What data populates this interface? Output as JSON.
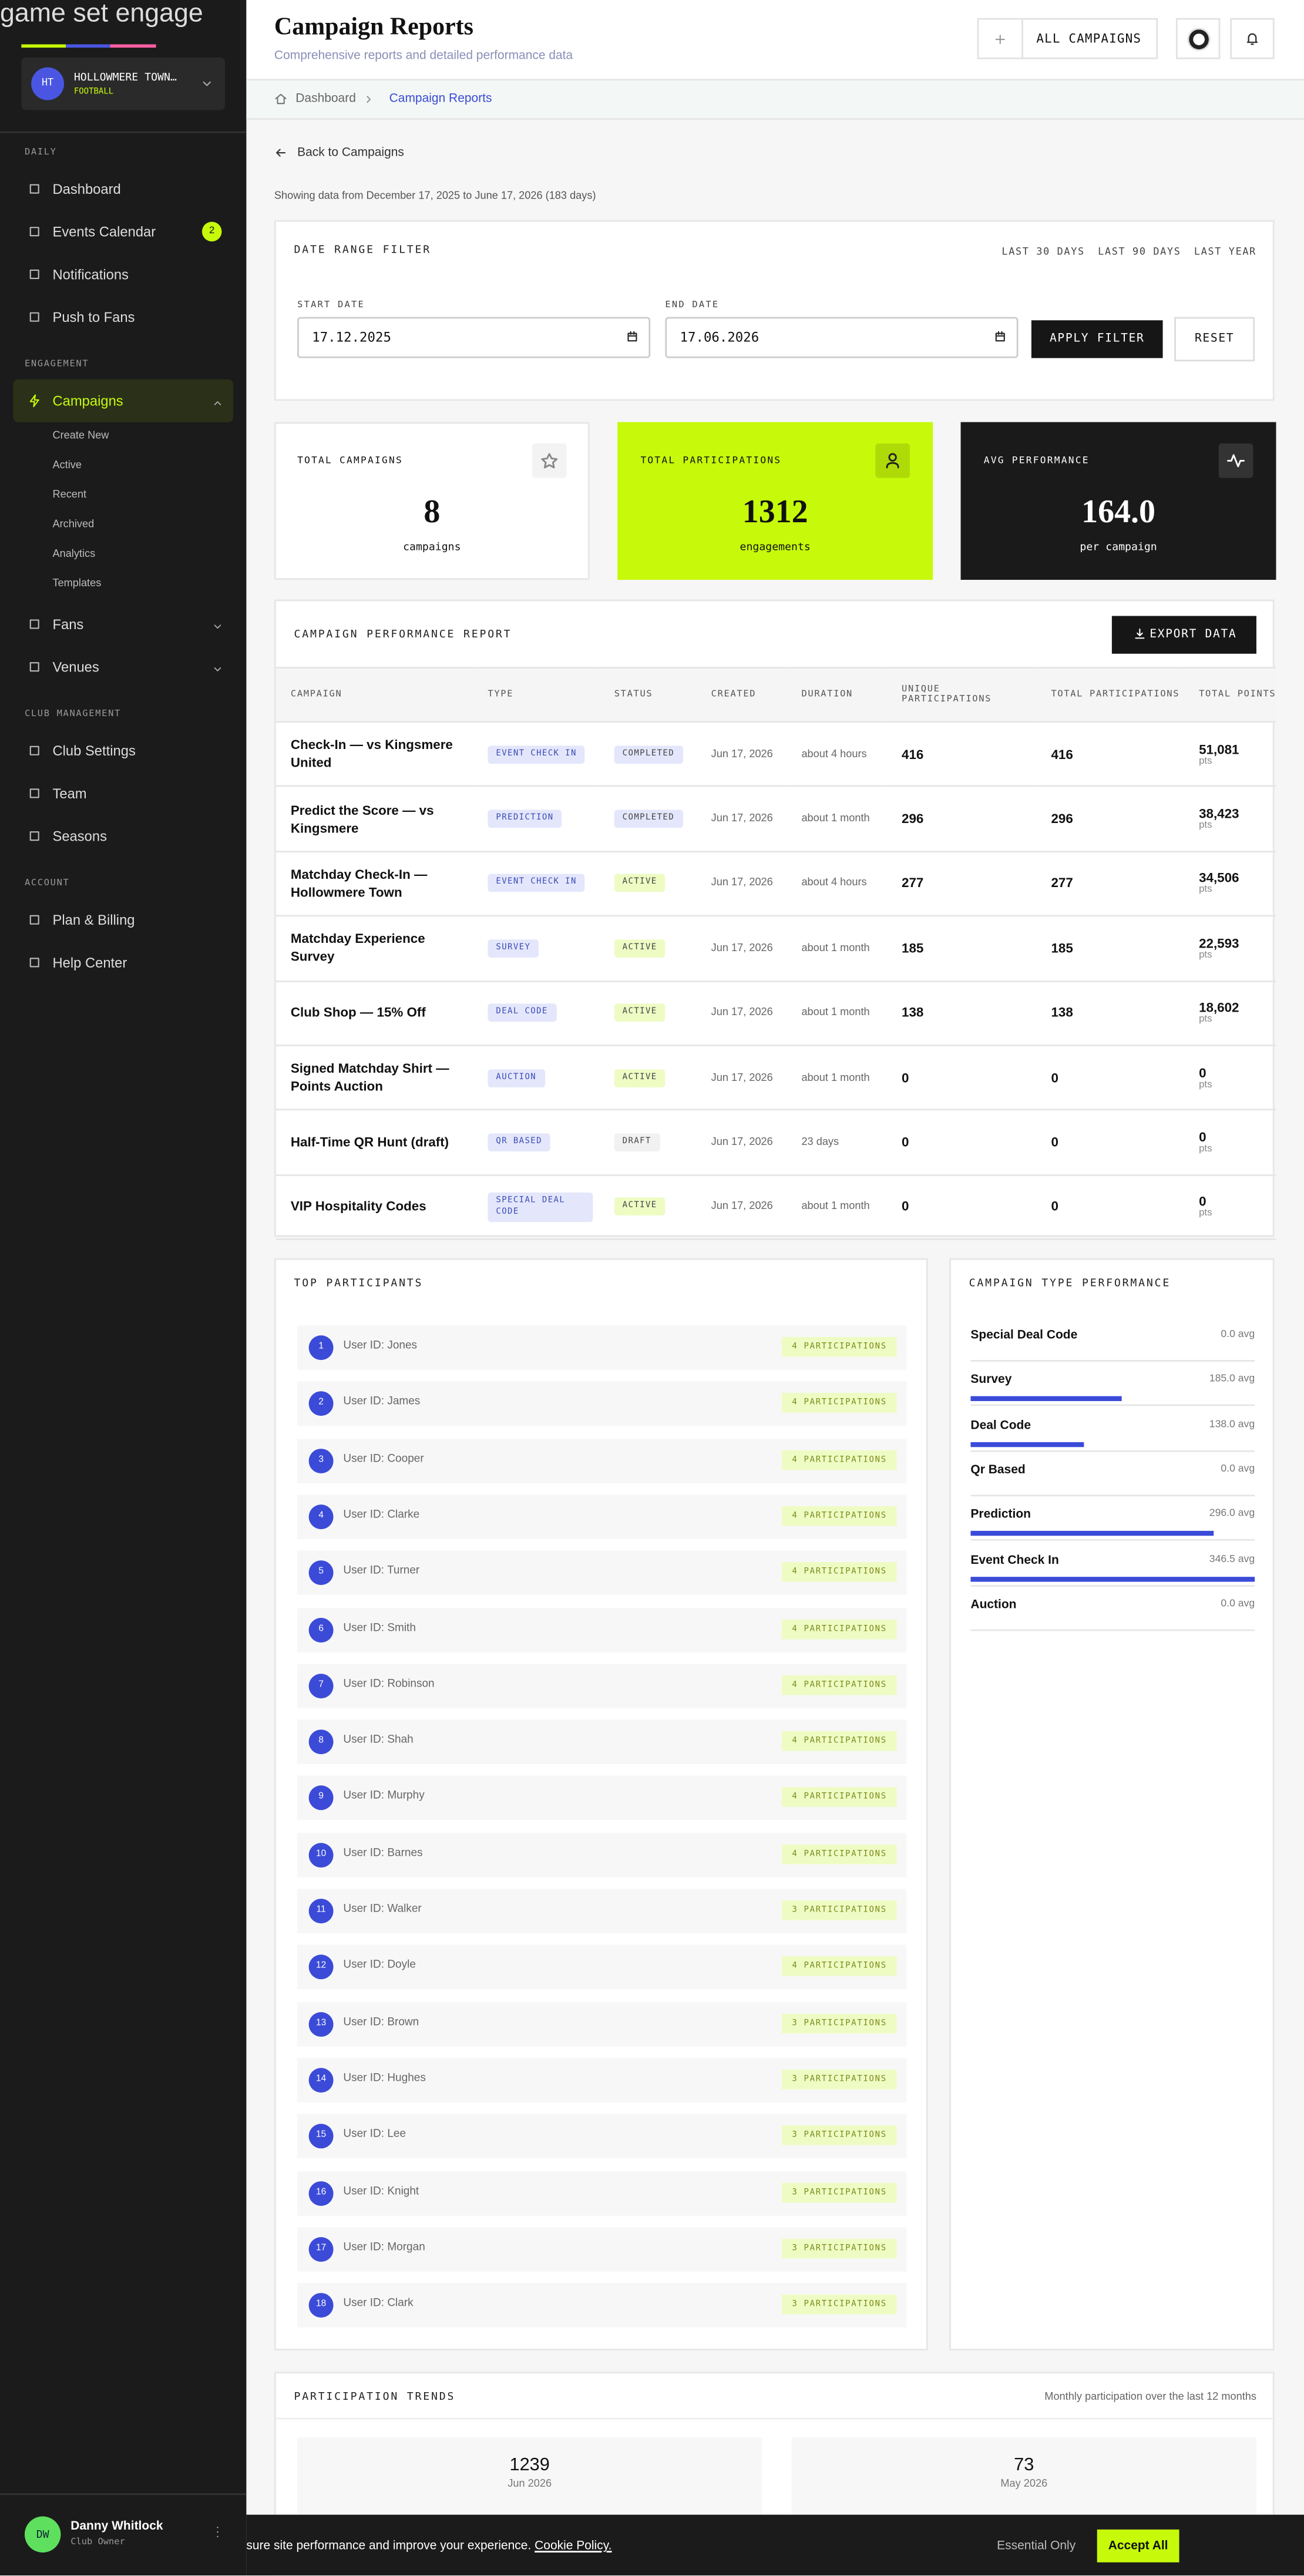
{
  "sidebar": {
    "logo": "game set engage",
    "club": {
      "initials": "HT",
      "name": "HOLLOWMERE TOWN…",
      "sport": "FOOTBALL"
    },
    "sections": [
      {
        "title": "DAILY",
        "items": [
          {
            "label": "Dashboard"
          },
          {
            "label": "Events Calendar",
            "badge": "2"
          },
          {
            "label": "Notifications"
          },
          {
            "label": "Push to Fans"
          }
        ]
      },
      {
        "title": "ENGAGEMENT",
        "items": [
          {
            "label": "Campaigns",
            "active": true,
            "expandable": true,
            "children": [
              "Create New",
              "Active",
              "Recent",
              "Archived",
              "Analytics",
              "Templates"
            ]
          },
          {
            "label": "Fans",
            "expandable": true
          },
          {
            "label": "Venues",
            "expandable": true
          }
        ]
      },
      {
        "title": "CLUB MANAGEMENT",
        "items": [
          {
            "label": "Club Settings"
          },
          {
            "label": "Team"
          },
          {
            "label": "Seasons"
          }
        ]
      },
      {
        "title": "ACCOUNT",
        "items": [
          {
            "label": "Plan & Billing"
          },
          {
            "label": "Help Center"
          }
        ]
      }
    ],
    "user": {
      "initials": "DW",
      "name": "Danny Whitlock",
      "role": "Club Owner"
    }
  },
  "header": {
    "title": "Campaign Reports",
    "subtitle": "Comprehensive reports and detailed performance data",
    "button": "ALL CAMPAIGNS"
  },
  "breadcrumb": [
    "Dashboard",
    "Campaign Reports"
  ],
  "back": "Back to Campaigns",
  "range_note": "Showing data from December 17, 2025 to June 17, 2026 (183 days)",
  "date_filter": {
    "title": "DATE RANGE FILTER",
    "presets": [
      "LAST 30 DAYS",
      "LAST 90 DAYS",
      "LAST YEAR"
    ],
    "start_label": "START DATE",
    "start": "17.12.2025",
    "end_label": "END DATE",
    "end": "17.06.2026",
    "apply": "APPLY FILTER",
    "reset": "RESET"
  },
  "stats": [
    {
      "label": "TOTAL CAMPAIGNS",
      "value": "8",
      "unit": "campaigns",
      "bg": "#ffffff",
      "fg": "#111111"
    },
    {
      "label": "TOTAL PARTICIPATIONS",
      "value": "1312",
      "unit": "engagements",
      "bg": "#c6fa0a",
      "fg": "#111111"
    },
    {
      "label": "AVG PERFORMANCE",
      "value": "164.0",
      "unit": "per campaign",
      "bg": "#1a1a1a",
      "fg": "#ffffff"
    }
  ],
  "report": {
    "title": "CAMPAIGN PERFORMANCE REPORT",
    "export": "EXPORT DATA",
    "points_unit": "pts",
    "columns": [
      "CAMPAIGN",
      "TYPE",
      "STATUS",
      "CREATED",
      "DURATION",
      "UNIQUE PARTICIPATIONS",
      "TOTAL PARTICIPATIONS",
      "TOTAL POINTS"
    ],
    "rows": [
      {
        "campaign": "Check-In — vs Kingsmere United",
        "type": "EVENT CHECK IN",
        "status": "COMPLETED",
        "status_color": "#e4e7fb",
        "created": "Jun 17, 2026",
        "duration": "about 4 hours",
        "unique": "416",
        "total": "416",
        "points": "51,081"
      },
      {
        "campaign": "Predict the Score — vs Kingsmere",
        "type": "PREDICTION",
        "status": "COMPLETED",
        "status_color": "#e4e7fb",
        "created": "Jun 17, 2026",
        "duration": "about 1 month",
        "unique": "296",
        "total": "296",
        "points": "38,423"
      },
      {
        "campaign": "Matchday Check-In — Hollowmere Town",
        "type": "EVENT CHECK IN",
        "status": "ACTIVE",
        "status_color": "#eefcc4",
        "created": "Jun 17, 2026",
        "duration": "about 4 hours",
        "unique": "277",
        "total": "277",
        "points": "34,506"
      },
      {
        "campaign": "Matchday Experience Survey",
        "type": "SURVEY",
        "status": "ACTIVE",
        "status_color": "#eefcc4",
        "created": "Jun 17, 2026",
        "duration": "about 1 month",
        "unique": "185",
        "total": "185",
        "points": "22,593"
      },
      {
        "campaign": "Club Shop — 15% Off",
        "type": "DEAL CODE",
        "status": "ACTIVE",
        "status_color": "#eefcc4",
        "created": "Jun 17, 2026",
        "duration": "about 1 month",
        "unique": "138",
        "total": "138",
        "points": "18,602"
      },
      {
        "campaign": "Signed Matchday Shirt — Points Auction",
        "type": "AUCTION",
        "status": "ACTIVE",
        "status_color": "#eefcc4",
        "created": "Jun 17, 2026",
        "duration": "about 1 month",
        "unique": "0",
        "total": "0",
        "points": "0"
      },
      {
        "campaign": "Half-Time QR Hunt (draft)",
        "type": "QR BASED",
        "status": "DRAFT",
        "status_color": "#f1f1f1",
        "created": "Jun 17, 2026",
        "duration": "23 days",
        "unique": "0",
        "total": "0",
        "points": "0"
      },
      {
        "campaign": "VIP Hospitality Codes",
        "type": "SPECIAL DEAL CODE",
        "status": "ACTIVE",
        "status_color": "#eefcc4",
        "created": "Jun 17, 2026",
        "duration": "about 1 month",
        "unique": "0",
        "total": "0",
        "points": "0"
      }
    ]
  },
  "top_participants": {
    "title": "TOP PARTICIPANTS",
    "items": [
      {
        "rank": 1,
        "user": "User ID: Jones",
        "count": "4 PARTICIPATIONS"
      },
      {
        "rank": 2,
        "user": "User ID: James",
        "count": "4 PARTICIPATIONS"
      },
      {
        "rank": 3,
        "user": "User ID: Cooper",
        "count": "4 PARTICIPATIONS"
      },
      {
        "rank": 4,
        "user": "User ID: Clarke",
        "count": "4 PARTICIPATIONS"
      },
      {
        "rank": 5,
        "user": "User ID: Turner",
        "count": "4 PARTICIPATIONS"
      },
      {
        "rank": 6,
        "user": "User ID: Smith",
        "count": "4 PARTICIPATIONS"
      },
      {
        "rank": 7,
        "user": "User ID: Robinson",
        "count": "4 PARTICIPATIONS"
      },
      {
        "rank": 8,
        "user": "User ID: Shah",
        "count": "4 PARTICIPATIONS"
      },
      {
        "rank": 9,
        "user": "User ID: Murphy",
        "count": "4 PARTICIPATIONS"
      },
      {
        "rank": 10,
        "user": "User ID: Barnes",
        "count": "4 PARTICIPATIONS"
      },
      {
        "rank": 11,
        "user": "User ID: Walker",
        "count": "3 PARTICIPATIONS"
      },
      {
        "rank": 12,
        "user": "User ID: Doyle",
        "count": "4 PARTICIPATIONS"
      },
      {
        "rank": 13,
        "user": "User ID: Brown",
        "count": "3 PARTICIPATIONS"
      },
      {
        "rank": 14,
        "user": "User ID: Hughes",
        "count": "3 PARTICIPATIONS"
      },
      {
        "rank": 15,
        "user": "User ID: Lee",
        "count": "3 PARTICIPATIONS"
      },
      {
        "rank": 16,
        "user": "User ID: Knight",
        "count": "3 PARTICIPATIONS"
      },
      {
        "rank": 17,
        "user": "User ID: Morgan",
        "count": "3 PARTICIPATIONS"
      },
      {
        "rank": 18,
        "user": "User ID: Clark",
        "count": "3 PARTICIPATIONS"
      }
    ]
  },
  "type_performance": {
    "title": "CAMPAIGN TYPE PERFORMANCE",
    "color": "#3b4bd8",
    "items": [
      {
        "name": "Special Deal Code",
        "value": 0,
        "value_label": "0.0 avg"
      },
      {
        "name": "Survey",
        "value": 185,
        "value_label": "185.0 avg"
      },
      {
        "name": "Deal Code",
        "value": 138,
        "value_label": "138.0 avg"
      },
      {
        "name": "Qr Based",
        "value": 0,
        "value_label": "0.0 avg"
      },
      {
        "name": "Prediction",
        "value": 296,
        "value_label": "296.0 avg"
      },
      {
        "name": "Event Check In",
        "value": 346.5,
        "value_label": "346.5 avg"
      },
      {
        "name": "Auction",
        "value": 0,
        "value_label": "0.0 avg"
      }
    ]
  },
  "trends": {
    "title": "PARTICIPATION TRENDS",
    "subtitle": "Monthly participation over the last 12 months",
    "cards": [
      {
        "value": "1239",
        "label": "Jun 2026"
      },
      {
        "value": "73",
        "label": "May 2026"
      }
    ]
  },
  "cookie": {
    "text": "sure site performance and improve your experience.",
    "link": "Cookie Policy.",
    "essential": "Essential Only",
    "accept": "Accept All"
  }
}
